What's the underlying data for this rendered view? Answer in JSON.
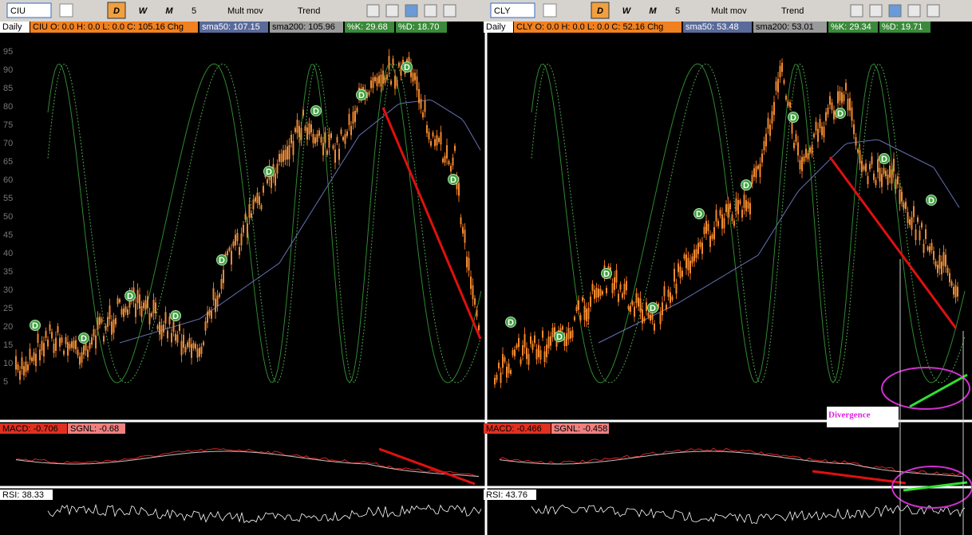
{
  "panels": [
    {
      "symbol": "CIU",
      "buttons": [
        "D",
        "W",
        "M"
      ],
      "period": "5",
      "overlay": "Mult mov",
      "study": "Trend",
      "timeframe": "Daily",
      "quote": "CIU  O: 0.0  H: 0.0  L: 0.0  C: 105.16  Chg",
      "sma50": "sma50: 107.15",
      "sma200": "sma200: 105.96",
      "k": "%K: 29.68",
      "d": "%D: 18.70",
      "yticks": [
        95,
        90,
        85,
        80,
        75,
        70,
        65,
        60,
        55,
        50,
        45,
        40,
        35,
        30,
        25,
        20,
        15,
        10,
        5
      ],
      "markers": [
        "D",
        "D",
        "D",
        "D",
        "D",
        "D",
        "D",
        "D",
        "D",
        "D"
      ],
      "macd": "MACD: -0.706",
      "signal": "SGNL: -0.68",
      "rsi": "RSI: 38.33"
    },
    {
      "symbol": "CLY",
      "buttons": [
        "D",
        "W",
        "M"
      ],
      "period": "5",
      "overlay": "Mult mov",
      "study": "Trend",
      "timeframe": "Daily",
      "quote": "CLY  O: 0.0  H: 0.0  L: 0.0  C: 52.16  Chg",
      "sma50": "sma50: 53.48",
      "sma200": "sma200: 53.01",
      "k": "%K: 29.34",
      "d": "%D: 19.71",
      "yticks": [],
      "markers": [
        "D",
        "D",
        "D",
        "D",
        "D",
        "D",
        "D",
        "D",
        "D",
        "D"
      ],
      "macd": "MACD: -0.466",
      "signal": "SGNL: -0.458",
      "rsi": "RSI: 43.76"
    }
  ],
  "annotation": "Divergence"
}
